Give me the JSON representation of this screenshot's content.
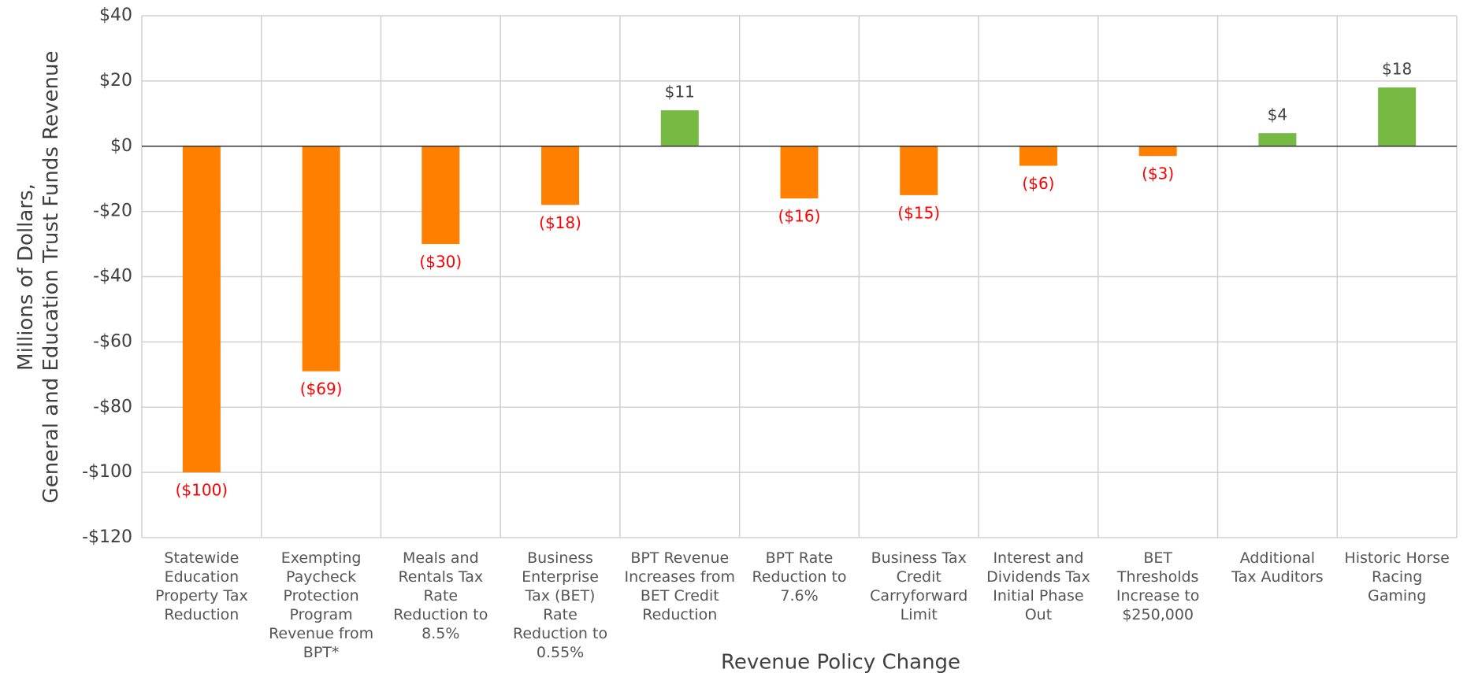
{
  "chart_data": {
    "type": "bar",
    "xlabel": "Revenue Policy Change",
    "ylabel": "Millions of Dollars,\nGeneral and Education Trust Funds Revenue",
    "categories": [
      "Statewide\nEducation\nProperty Tax\nReduction",
      "Exempting\nPaycheck\nProtection\nProgram\nRevenue from\nBPT*",
      "Meals and\nRentals Tax\nRate\nReduction to\n8.5%",
      "Business\nEnterprise\nTax (BET)\nRate\nReduction to\n0.55%",
      "BPT Revenue\nIncreases from\nBET Credit\nReduction",
      "BPT Rate\nReduction to\n7.6%",
      "Business Tax\nCredit\nCarryforward\nLimit",
      "Interest and\nDividends Tax\nInitial Phase\nOut",
      "BET\nThresholds\nIncrease to\n$250,000",
      "Additional\nTax Auditors",
      "Historic Horse\nRacing\nGaming"
    ],
    "values": [
      -100,
      -69,
      -30,
      -18,
      11,
      -16,
      -15,
      -6,
      -3,
      4,
      18
    ],
    "value_labels": [
      "($100)",
      "($69)",
      "($30)",
      "($18)",
      "$11",
      "($16)",
      "($15)",
      "($6)",
      "($3)",
      "$4",
      "$18"
    ],
    "colors": [
      "#ff8000",
      "#ff8000",
      "#ff8000",
      "#ff8000",
      "#76b943",
      "#ff8000",
      "#ff8000",
      "#ff8000",
      "#ff8000",
      "#76b943",
      "#76b943"
    ],
    "negative_label_color": "#ff0000",
    "positive_label_color": "#404040",
    "ylim": [
      -120,
      40
    ],
    "yticks": [
      {
        "value": -120,
        "label": "-$120"
      },
      {
        "value": -100,
        "label": "-$100"
      },
      {
        "value": -80,
        "label": "-$80"
      },
      {
        "value": -60,
        "label": "-$60"
      },
      {
        "value": -40,
        "label": "-$40"
      },
      {
        "value": -20,
        "label": "-$20"
      },
      {
        "value": 0,
        "label": "$0"
      },
      {
        "value": 20,
        "label": "$20"
      },
      {
        "value": 40,
        "label": "$40"
      }
    ],
    "grid": true
  }
}
